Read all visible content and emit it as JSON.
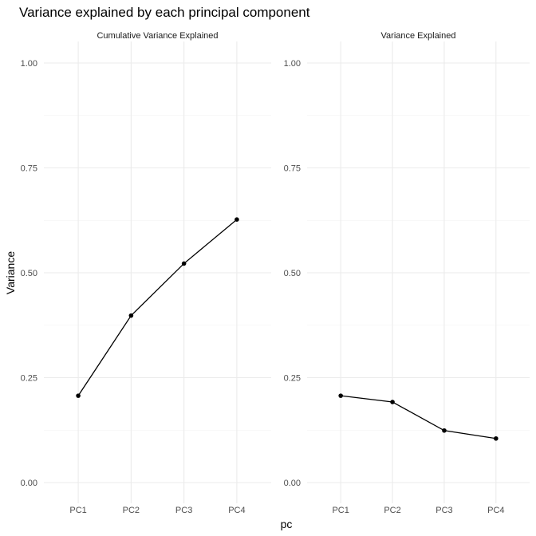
{
  "chart_data": {
    "type": "line",
    "title": "Variance explained by each principal component",
    "xlabel": "pc",
    "ylabel": "Variance",
    "categories": [
      "PC1",
      "PC2",
      "PC3",
      "PC4"
    ],
    "ylim": [
      0,
      1
    ],
    "yticks": [
      "0.00",
      "0.25",
      "0.50",
      "0.75",
      "1.00"
    ],
    "grid": true,
    "panels": [
      {
        "strip": "Cumulative Variance Explained",
        "values": [
          0.207,
          0.398,
          0.522,
          0.627
        ]
      },
      {
        "strip": "Variance Explained",
        "values": [
          0.207,
          0.192,
          0.124,
          0.105
        ]
      }
    ]
  }
}
